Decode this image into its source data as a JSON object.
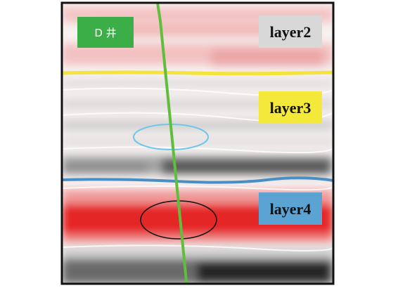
{
  "well": {
    "label": "D 井",
    "badge_color": "#3cae48",
    "trace_color": "#5fbf3c"
  },
  "layers": [
    {
      "name": "layer2",
      "badge_color": "#d8d8d8"
    },
    {
      "name": "layer3",
      "badge_color": "#f4e83a"
    },
    {
      "name": "layer4",
      "badge_color": "#5ba3d3"
    }
  ],
  "horizons": [
    {
      "name": "top-layer3-horizon",
      "color": "#f2e43a"
    },
    {
      "name": "top-layer4-horizon",
      "color": "#4a8fc4"
    }
  ],
  "ellipses": [
    {
      "name": "layer3-target-ellipse",
      "color": "#6ec6ea"
    },
    {
      "name": "layer4-target-ellipse",
      "color": "#111111"
    }
  ]
}
